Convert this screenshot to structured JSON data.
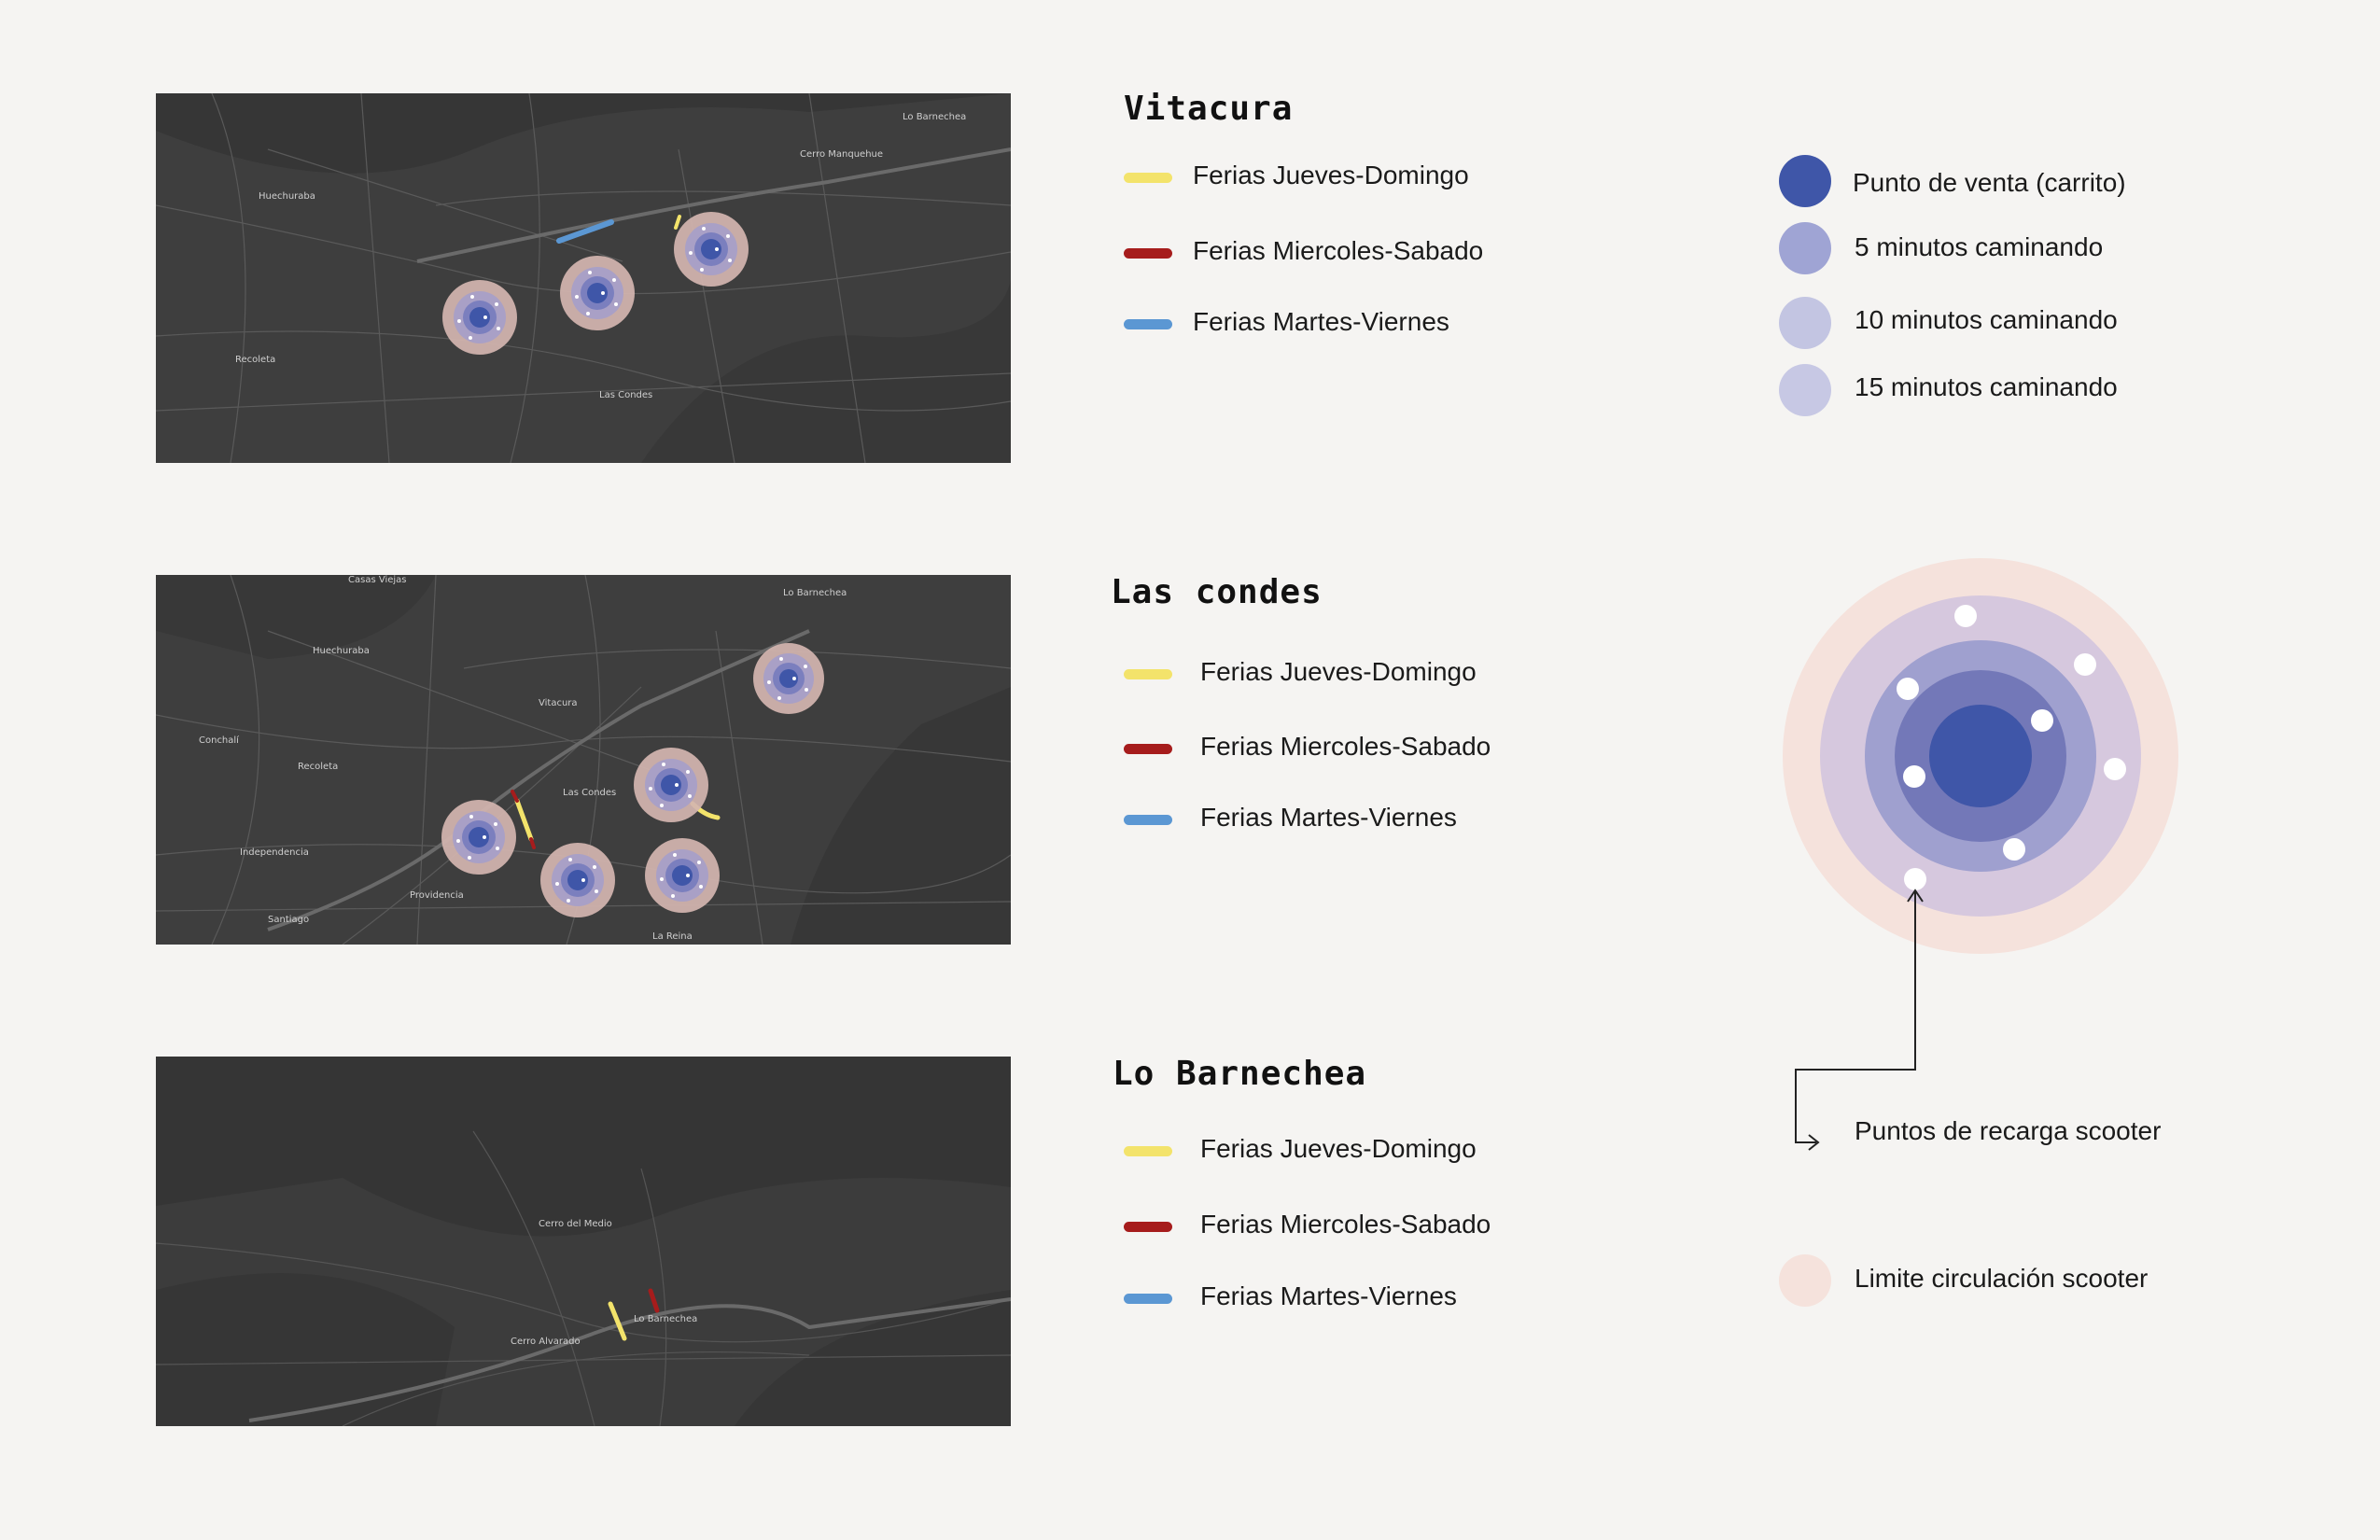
{
  "colors": {
    "jueves_domingo": "#f3e36b",
    "miercoles_sabado": "#a61c1c",
    "martes_viernes": "#5b97d3",
    "punto_venta": "#3f56a8",
    "cinco_min": "#9fa4d4",
    "diez_min": "#c3c5e2",
    "quince_min": "#c7c8e4",
    "limite": "#f5e2dc"
  },
  "sections": [
    {
      "title": "Vitacura",
      "legend": [
        "Ferias Jueves-Domingo",
        "Ferias Miercoles-Sabado",
        "Ferias Martes-Viernes"
      ],
      "map_labels": [
        "Huechuraba",
        "Recoleta",
        "Las Condes",
        "Lo Barnechea",
        "Cerro Manquehue"
      ]
    },
    {
      "title": "Las condes",
      "legend": [
        "Ferias Jueves-Domingo",
        "Ferias Miercoles-Sabado",
        "Ferias Martes-Viernes"
      ],
      "map_labels": [
        "Casas Viejas",
        "Huechuraba",
        "Vitacura",
        "Conchalí",
        "Recoleta",
        "Las Condes",
        "Independencia",
        "Providencia",
        "Santiago",
        "La Reina",
        "Lo Barnechea"
      ]
    },
    {
      "title": "Lo Barnechea",
      "legend": [
        "Ferias Jueves-Domingo",
        "Ferias Miercoles-Sabado",
        "Ferias Martes-Viernes"
      ],
      "map_labels": [
        "Lo Barnechea",
        "Cerro del Medio",
        "Cerro Alvarado"
      ]
    }
  ],
  "key": {
    "items": [
      "Punto de  venta (carrito)",
      "5 minutos caminando",
      "10 minutos caminando",
      "15 minutos caminando"
    ],
    "recarga": "Puntos de recarga scooter",
    "limite": "Limite circulación scooter"
  }
}
